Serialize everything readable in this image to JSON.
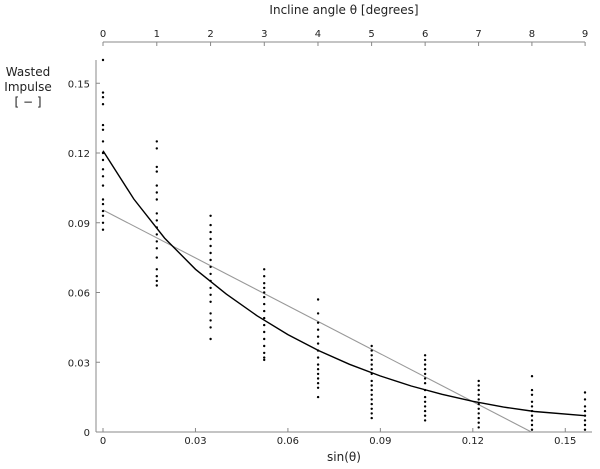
{
  "chart_data": {
    "type": "scatter",
    "title": "",
    "xlabel": "sin(θ)",
    "ylabel_lines": [
      "Wasted",
      "Impulse",
      "[ − ]"
    ],
    "top_axis_label": "Incline angle θ [degrees]",
    "xlim": [
      0,
      0.1564
    ],
    "ylim": [
      0,
      0.16
    ],
    "x_ticks": [
      "0",
      "0.03",
      "0.06",
      "0.09",
      "0.12",
      "0.15"
    ],
    "y_ticks": [
      "0",
      "0.03",
      "0.06",
      "0.09",
      "0.12",
      "0.15"
    ],
    "top_ticks": [
      "0",
      "1",
      "2",
      "3",
      "4",
      "5",
      "6",
      "7",
      "8",
      "9"
    ],
    "grid": false,
    "series": [
      {
        "type": "scatter",
        "color": "#000000",
        "points": [
          [
            0,
            0.16
          ],
          [
            0,
            0.146
          ],
          [
            0,
            0.144
          ],
          [
            0,
            0.141
          ],
          [
            0,
            0.132
          ],
          [
            0,
            0.13
          ],
          [
            0,
            0.125
          ],
          [
            0,
            0.12
          ],
          [
            0,
            0.117
          ],
          [
            0,
            0.113
          ],
          [
            0,
            0.11
          ],
          [
            0,
            0.106
          ],
          [
            0,
            0.1
          ],
          [
            0,
            0.098
          ],
          [
            0,
            0.095
          ],
          [
            0,
            0.093
          ],
          [
            0,
            0.09
          ],
          [
            0,
            0.087
          ],
          [
            0.01745,
            0.125
          ],
          [
            0.01745,
            0.122
          ],
          [
            0.01745,
            0.114
          ],
          [
            0.01745,
            0.112
          ],
          [
            0.01745,
            0.106
          ],
          [
            0.01745,
            0.103
          ],
          [
            0.01745,
            0.1
          ],
          [
            0.01745,
            0.094
          ],
          [
            0.01745,
            0.091
          ],
          [
            0.01745,
            0.088
          ],
          [
            0.01745,
            0.085
          ],
          [
            0.01745,
            0.082
          ],
          [
            0.01745,
            0.079
          ],
          [
            0.01745,
            0.075
          ],
          [
            0.01745,
            0.07
          ],
          [
            0.01745,
            0.067
          ],
          [
            0.01745,
            0.065
          ],
          [
            0.01745,
            0.063
          ],
          [
            0.0349,
            0.093
          ],
          [
            0.0349,
            0.089
          ],
          [
            0.0349,
            0.086
          ],
          [
            0.0349,
            0.083
          ],
          [
            0.0349,
            0.08
          ],
          [
            0.0349,
            0.077
          ],
          [
            0.0349,
            0.074
          ],
          [
            0.0349,
            0.071
          ],
          [
            0.0349,
            0.068
          ],
          [
            0.0349,
            0.065
          ],
          [
            0.0349,
            0.062
          ],
          [
            0.0349,
            0.059
          ],
          [
            0.0349,
            0.056
          ],
          [
            0.0349,
            0.051
          ],
          [
            0.0349,
            0.048
          ],
          [
            0.0349,
            0.045
          ],
          [
            0.0349,
            0.04
          ],
          [
            0.0523,
            0.07
          ],
          [
            0.0523,
            0.067
          ],
          [
            0.0523,
            0.064
          ],
          [
            0.0523,
            0.062
          ],
          [
            0.0523,
            0.06
          ],
          [
            0.0523,
            0.058
          ],
          [
            0.0523,
            0.055
          ],
          [
            0.0523,
            0.052
          ],
          [
            0.0523,
            0.049
          ],
          [
            0.0523,
            0.046
          ],
          [
            0.0523,
            0.043
          ],
          [
            0.0523,
            0.04
          ],
          [
            0.0523,
            0.037
          ],
          [
            0.0523,
            0.034
          ],
          [
            0.0523,
            0.032
          ],
          [
            0.0523,
            0.031
          ],
          [
            0.0698,
            0.057
          ],
          [
            0.0698,
            0.051
          ],
          [
            0.0698,
            0.047
          ],
          [
            0.0698,
            0.044
          ],
          [
            0.0698,
            0.041
          ],
          [
            0.0698,
            0.038
          ],
          [
            0.0698,
            0.035
          ],
          [
            0.0698,
            0.032
          ],
          [
            0.0698,
            0.029
          ],
          [
            0.0698,
            0.027
          ],
          [
            0.0698,
            0.025
          ],
          [
            0.0698,
            0.023
          ],
          [
            0.0698,
            0.021
          ],
          [
            0.0698,
            0.019
          ],
          [
            0.0698,
            0.015
          ],
          [
            0.0872,
            0.037
          ],
          [
            0.0872,
            0.035
          ],
          [
            0.0872,
            0.033
          ],
          [
            0.0872,
            0.031
          ],
          [
            0.0872,
            0.029
          ],
          [
            0.0872,
            0.027
          ],
          [
            0.0872,
            0.025
          ],
          [
            0.0872,
            0.022
          ],
          [
            0.0872,
            0.02
          ],
          [
            0.0872,
            0.018
          ],
          [
            0.0872,
            0.016
          ],
          [
            0.0872,
            0.014
          ],
          [
            0.0872,
            0.012
          ],
          [
            0.0872,
            0.01
          ],
          [
            0.0872,
            0.008
          ],
          [
            0.0872,
            0.006
          ],
          [
            0.1045,
            0.033
          ],
          [
            0.1045,
            0.031
          ],
          [
            0.1045,
            0.029
          ],
          [
            0.1045,
            0.027
          ],
          [
            0.1045,
            0.025
          ],
          [
            0.1045,
            0.023
          ],
          [
            0.1045,
            0.021
          ],
          [
            0.1045,
            0.018
          ],
          [
            0.1045,
            0.015
          ],
          [
            0.1045,
            0.013
          ],
          [
            0.1045,
            0.011
          ],
          [
            0.1045,
            0.009
          ],
          [
            0.1045,
            0.007
          ],
          [
            0.1045,
            0.005
          ],
          [
            0.1219,
            0.022
          ],
          [
            0.1219,
            0.02
          ],
          [
            0.1219,
            0.018
          ],
          [
            0.1219,
            0.016
          ],
          [
            0.1219,
            0.014
          ],
          [
            0.1219,
            0.012
          ],
          [
            0.1219,
            0.01
          ],
          [
            0.1219,
            0.008
          ],
          [
            0.1219,
            0.006
          ],
          [
            0.1219,
            0.004
          ],
          [
            0.1219,
            0.002
          ],
          [
            0.1392,
            0.024
          ],
          [
            0.1392,
            0.018
          ],
          [
            0.1392,
            0.016
          ],
          [
            0.1392,
            0.013
          ],
          [
            0.1392,
            0.011
          ],
          [
            0.1392,
            0.009
          ],
          [
            0.1392,
            0.007
          ],
          [
            0.1392,
            0.005
          ],
          [
            0.1392,
            0.003
          ],
          [
            0.1392,
            0.001
          ],
          [
            0.1564,
            0.017
          ],
          [
            0.1564,
            0.014
          ],
          [
            0.1564,
            0.011
          ],
          [
            0.1564,
            0.009
          ],
          [
            0.1564,
            0.007
          ],
          [
            0.1564,
            0.005
          ],
          [
            0.1564,
            0.003
          ],
          [
            0.1564,
            0.001
          ]
        ]
      },
      {
        "type": "line",
        "color": "#999999",
        "x": [
          0,
          0.139
        ],
        "y": [
          0.0955,
          0
        ]
      },
      {
        "type": "line",
        "color": "#000000",
        "x": [
          0,
          0.01,
          0.02,
          0.03,
          0.04,
          0.05,
          0.06,
          0.07,
          0.08,
          0.09,
          0.1,
          0.11,
          0.12,
          0.13,
          0.14,
          0.1564
        ],
        "y": [
          0.121,
          0.1002,
          0.0834,
          0.07,
          0.0593,
          0.05,
          0.0419,
          0.035,
          0.0291,
          0.0241,
          0.0198,
          0.0162,
          0.0132,
          0.0107,
          0.0088,
          0.007
        ]
      }
    ]
  }
}
